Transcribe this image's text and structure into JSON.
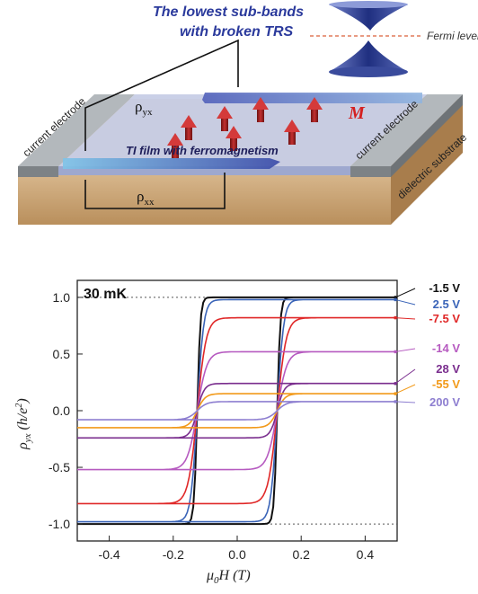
{
  "schematic": {
    "band_label_line1": "The lowest sub-bands",
    "band_label_line2": "with broken TRS",
    "fermi_label": "Fermi level",
    "left_electrode_label": "current electrode",
    "right_electrode_label": "current electrode",
    "substrate_label": "dielectric substrate",
    "film_label": "TI film with ferromagnetism",
    "rho_yx": {
      "base": "ρ",
      "sub": "yx"
    },
    "rho_xx": {
      "base": "ρ",
      "sub": "xx"
    },
    "magnetization_label": "M",
    "colors": {
      "film": "#c7cee6",
      "electrode": "#9aa0a4",
      "substrate": "#c9a57a",
      "arrow": "#b52020",
      "cone": "#2a3d8f"
    }
  },
  "chart_data": {
    "type": "line",
    "title": "",
    "annotation": "30 mK",
    "xlabel": {
      "base": "μ",
      "sub": "0",
      "rest": "H (T)"
    },
    "ylabel": {
      "base": "ρ",
      "sub": "yx",
      "rest": " (h/e",
      "sup": "2",
      "end": ")"
    },
    "xlim": [
      -0.5,
      0.5
    ],
    "ylim": [
      -1.15,
      1.15
    ],
    "xticks": [
      -0.4,
      -0.2,
      0.0,
      0.2,
      0.4
    ],
    "xtick_labels": [
      "-0.4",
      "-0.2",
      "0.0",
      "0.2",
      "0.4"
    ],
    "yticks": [
      -1.0,
      -0.5,
      0.0,
      0.5,
      1.0
    ],
    "ytick_labels": [
      "-1.0",
      "-0.5",
      "0.0",
      "0.5",
      "1.0"
    ],
    "reference_lines": [
      1.0,
      -1.0
    ],
    "legend_placement": "right",
    "series": [
      {
        "name": "-1.5 V",
        "color": "#111111",
        "saturation": 1.0,
        "coercive_field": 0.125,
        "width": 0.01
      },
      {
        "name": "2.5 V",
        "color": "#3a64b8",
        "saturation": 0.98,
        "coercive_field": 0.125,
        "width": 0.02
      },
      {
        "name": "-7.5 V",
        "color": "#e02828",
        "saturation": 0.82,
        "coercive_field": 0.125,
        "width": 0.028
      },
      {
        "name": "-14 V",
        "color": "#b65ac0",
        "saturation": 0.52,
        "coercive_field": 0.125,
        "width": 0.03
      },
      {
        "name": "28 V",
        "color": "#7a2e8e",
        "saturation": 0.24,
        "coercive_field": 0.125,
        "width": 0.022
      },
      {
        "name": "-55 V",
        "color": "#f29a1a",
        "saturation": 0.15,
        "coercive_field": 0.125,
        "width": 0.025
      },
      {
        "name": "200 V",
        "color": "#8d7ed0",
        "saturation": 0.08,
        "coercive_field": 0.125,
        "width": 0.03
      }
    ]
  }
}
